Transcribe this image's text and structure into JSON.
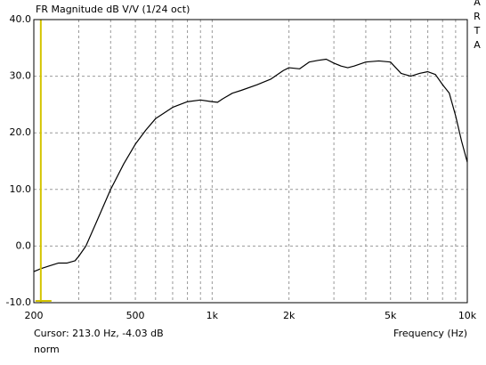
{
  "chart_data": {
    "type": "line",
    "title": "FR Magnitude dB V/V (1/24 oct)",
    "xlabel": "Frequency (Hz)",
    "side_label": "ARTA",
    "mode_label": "norm",
    "xscale": "log",
    "grid": true,
    "xlim": [
      200,
      10000
    ],
    "ylim": [
      -10,
      40
    ],
    "xticks": [
      200,
      500,
      {
        "value": 1000,
        "label": "1k"
      },
      {
        "value": 2000,
        "label": "2k"
      },
      {
        "value": 5000,
        "label": "5k"
      },
      {
        "value": 10000,
        "label": "10k"
      }
    ],
    "xminor_ticks": [
      300,
      400,
      600,
      700,
      800,
      900,
      3000,
      4000,
      6000,
      7000,
      8000,
      9000
    ],
    "yticks": [
      {
        "value": -10,
        "label": "-10.0"
      },
      {
        "value": 0,
        "label": "0.0"
      },
      {
        "value": 10,
        "label": "10.0"
      },
      {
        "value": 20,
        "label": "20.0"
      },
      {
        "value": 30,
        "label": "30.0"
      },
      {
        "value": 40,
        "label": "40.0"
      }
    ],
    "x": [
      200,
      213,
      230,
      250,
      270,
      290,
      300,
      320,
      350,
      400,
      450,
      500,
      550,
      600,
      700,
      800,
      900,
      1000,
      1050,
      1100,
      1200,
      1300,
      1500,
      1700,
      1900,
      2000,
      2200,
      2400,
      2600,
      2800,
      3000,
      3200,
      3400,
      3600,
      4000,
      4500,
      5000,
      5500,
      6000,
      6500,
      7000,
      7500,
      8000,
      8500,
      9000,
      9500,
      10000
    ],
    "series": [
      {
        "color": "#000000",
        "values": [
          -4.5,
          -4.0,
          -3.5,
          -3.0,
          -3.0,
          -2.6,
          -1.8,
          0,
          4,
          10,
          14.5,
          18,
          20.5,
          22.5,
          24.5,
          25.5,
          25.8,
          25.5,
          25.4,
          26,
          27,
          27.5,
          28.5,
          29.5,
          31,
          31.5,
          31.3,
          32.5,
          32.8,
          33,
          32.3,
          31.8,
          31.5,
          31.8,
          32.5,
          32.7,
          32.5,
          30.5,
          30,
          30.5,
          30.8,
          30.3,
          28.5,
          27,
          23,
          18.5,
          14.8
        ]
      }
    ],
    "cursor": {
      "label": "Cursor: 213.0 Hz, -4.03 dB",
      "x": 213,
      "y": -4.03,
      "color": "#d4c400"
    }
  }
}
